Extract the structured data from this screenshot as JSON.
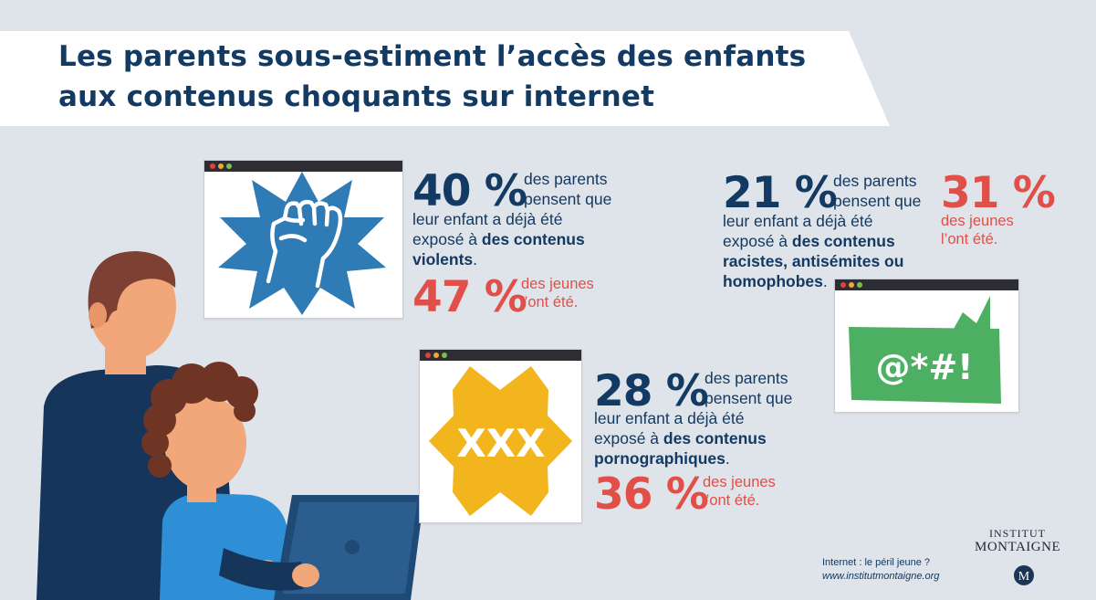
{
  "title": {
    "line1": "Les parents sous-estiment l’accès des enfants",
    "line2": "aux contenus choquants sur internet"
  },
  "violent": {
    "parents_pct": "40 %",
    "intro": "des parents",
    "intro2": "pensent que",
    "line1": "leur enfant a déjà été",
    "line2_pre": "exposé à ",
    "line2_bold": "des contenus",
    "line3_bold": "violents",
    "line3_end": ".",
    "youth_pct": "47 %",
    "youth_l1": "des jeunes",
    "youth_l2": "l’ont été.",
    "icon": "raised-fist-icon",
    "badge_color": "#2f7bb6"
  },
  "racist": {
    "parents_pct": "21 %",
    "intro": "des parents",
    "intro2": "pensent que",
    "line1": "leur enfant a déjà été",
    "line2_pre": "exposé à ",
    "line2_bold": "des contenus",
    "line3_bold": "racistes, antisémites ou",
    "line4_bold": "homophobes",
    "line4_end": ".",
    "youth_pct": "31 %",
    "youth_l1": "des jeunes",
    "youth_l2": "l’ont été.",
    "bubble_text": "@*#!",
    "bubble_color": "#4caf62"
  },
  "porn": {
    "parents_pct": "28 %",
    "intro": "des parents",
    "intro2": "pensent que",
    "line1": "leur enfant a déjà été",
    "line2_pre": "exposé à ",
    "line2_bold": "des contenus",
    "line3_bold": "pornographiques",
    "line3_end": ".",
    "youth_pct": "36 %",
    "youth_l1": "des jeunes",
    "youth_l2": "l’ont été.",
    "xxx_text": "XXX",
    "badge_color": "#f2b51d"
  },
  "footer": {
    "ref_line1": "Internet : le péril jeune ?",
    "ref_line2": "www.institutmontaigne.org",
    "logo_line1": "INSTITUT",
    "logo_line2": "MONTAIGNE",
    "logo_mark": "M"
  },
  "colors": {
    "navy": "#123a63",
    "red": "#e05048",
    "background": "#dfe3ea"
  }
}
